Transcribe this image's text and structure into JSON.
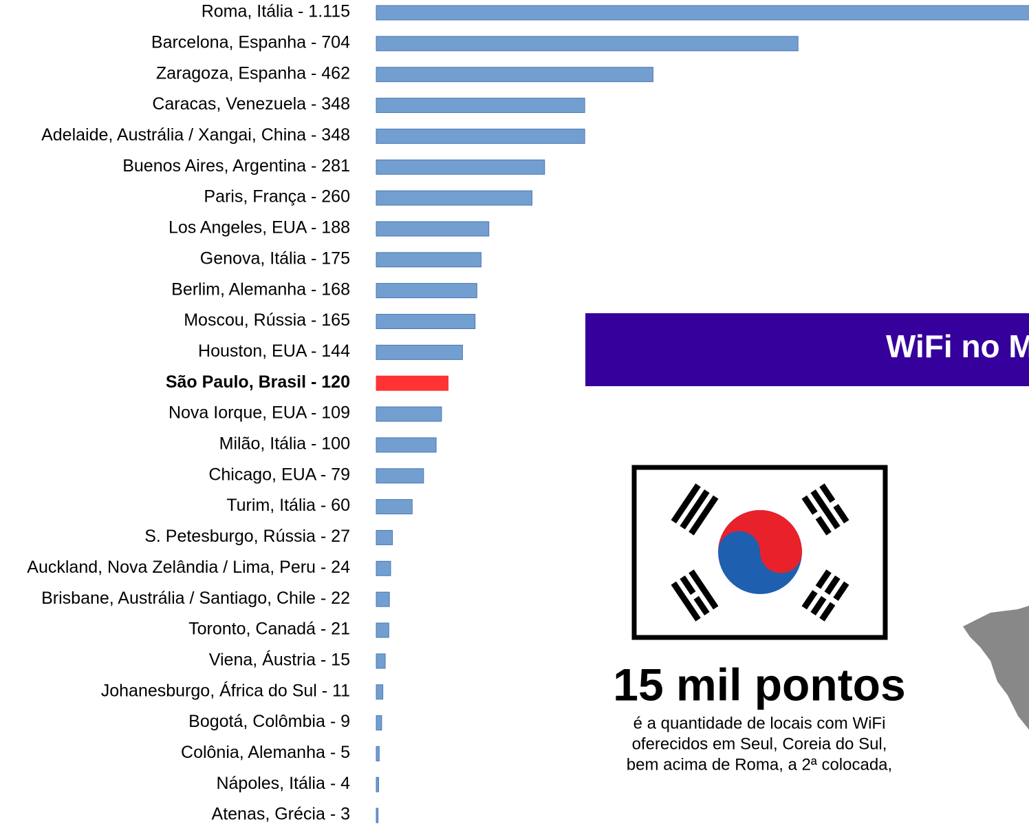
{
  "chart_data": {
    "type": "bar",
    "orientation": "horizontal",
    "categories": [
      "Roma, Itália - 1.115",
      "Barcelona, Espanha - 704",
      "Zaragoza, Espanha - 462",
      "Caracas, Venezuela - 348",
      "Adelaide, Austrália / Xangai, China - 348",
      "Buenos Aires, Argentina - 281",
      "Paris, França - 260",
      "Los Angeles, EUA - 188",
      "Genova, Itália - 175",
      "Berlim, Alemanha - 168",
      "Moscou, Rússia - 165",
      "Houston, EUA - 144",
      "São Paulo, Brasil - 120",
      "Nova Iorque, EUA - 109",
      "Milão, Itália - 100",
      "Chicago, EUA - 79",
      "Turim, Itália - 60",
      "S. Petesburgo, Rússia - 27",
      "Auckland, Nova Zelândia / Lima, Peru - 24",
      "Brisbane, Austrália / Santiago, Chile - 22",
      "Toronto, Canadá - 21",
      "Viena, Áustria - 15",
      "Johanesburgo, África do Sul - 11",
      "Bogotá, Colômbia - 9",
      "Colônia, Alemanha - 5",
      "Nápoles, Itália - 4",
      "Atenas, Grécia - 3"
    ],
    "values": [
      1115,
      704,
      462,
      348,
      348,
      281,
      260,
      188,
      175,
      168,
      165,
      144,
      120,
      109,
      100,
      79,
      60,
      27,
      24,
      22,
      21,
      15,
      11,
      9,
      5,
      4,
      3
    ],
    "color": "#729fcf",
    "colors": [
      "#729fcf",
      "#729fcf",
      "#729fcf",
      "#729fcf",
      "#729fcf",
      "#729fcf",
      "#729fcf",
      "#729fcf",
      "#729fcf",
      "#729fcf",
      "#729fcf",
      "#729fcf",
      "#ff3333",
      "#729fcf",
      "#729fcf",
      "#729fcf",
      "#729fcf",
      "#729fcf",
      "#729fcf",
      "#729fcf",
      "#729fcf",
      "#729fcf",
      "#729fcf",
      "#729fcf",
      "#729fcf",
      "#729fcf",
      "#729fcf"
    ]
  },
  "infographic": {
    "banner": "WiFi no M",
    "headline": "15 mil pontos",
    "description": [
      "é a quantidade de locais com WiFi",
      "oferecidos em Seul, Coreia do Sul,",
      "bem acima de Roma, a 2ª colocada,"
    ]
  }
}
